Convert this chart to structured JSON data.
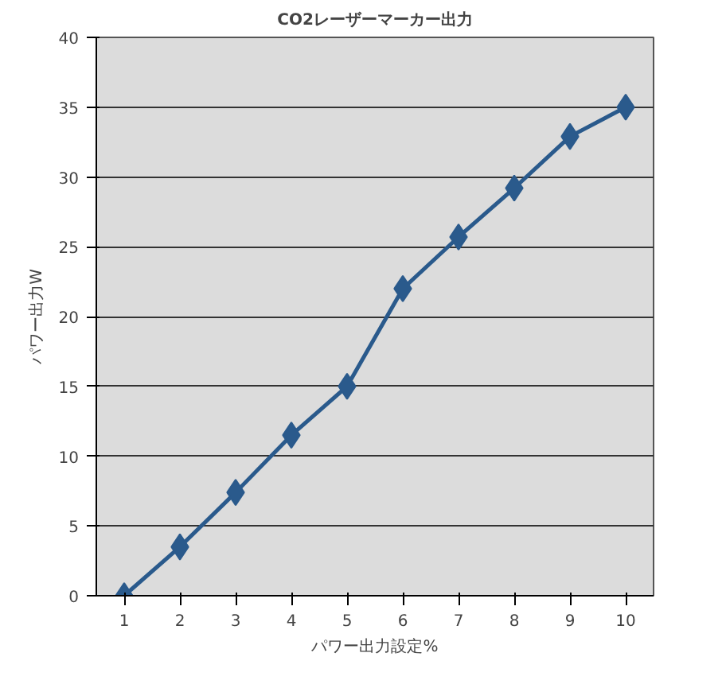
{
  "chart_data": {
    "type": "line",
    "title": "CO2レーザーマーカー出力",
    "xlabel": "パワー出力設定%",
    "ylabel": "パワー出力W",
    "categories": [
      "1",
      "2",
      "3",
      "4",
      "5",
      "6",
      "7",
      "8",
      "9",
      "10"
    ],
    "series": [
      {
        "color": "#2a5a8c",
        "values": [
          0,
          3.5,
          7.4,
          11.5,
          15,
          22,
          25.7,
          29.2,
          32.9,
          35
        ]
      }
    ],
    "ylim": [
      0,
      40
    ],
    "yticks": [
      0,
      5,
      10,
      15,
      20,
      25,
      30,
      35,
      40
    ],
    "grid": "y",
    "marker": "diamond",
    "line_style": "solid"
  }
}
